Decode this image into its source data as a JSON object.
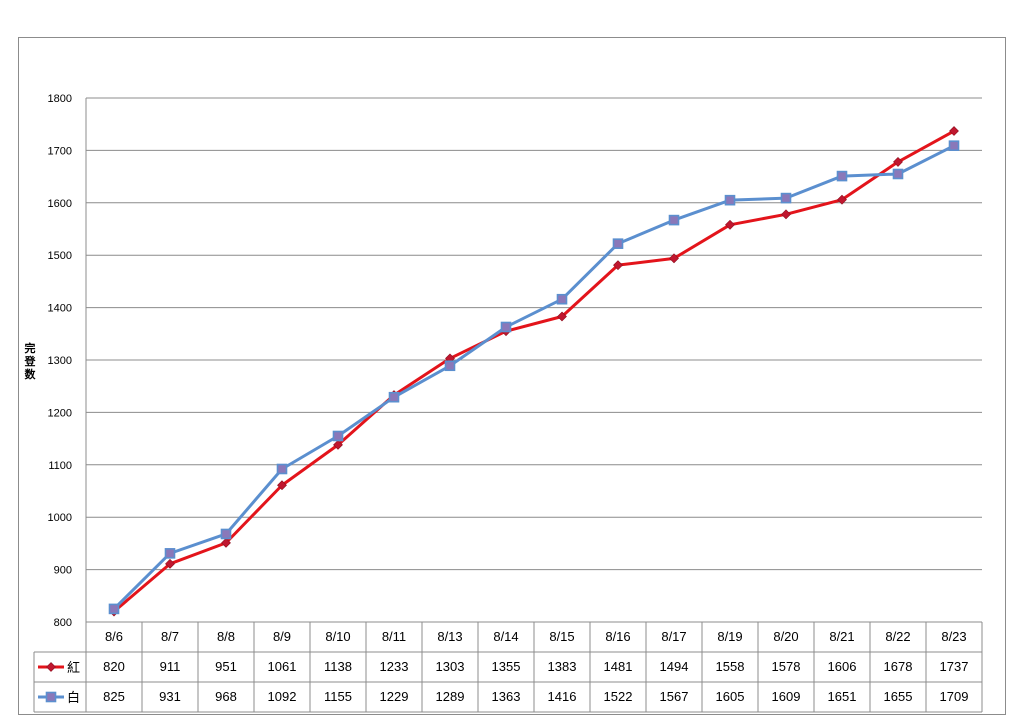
{
  "chart_data": {
    "type": "line",
    "ylabel": "完登数",
    "ylim": [
      800,
      1800
    ],
    "yticks": [
      800,
      900,
      1000,
      1100,
      1200,
      1300,
      1400,
      1500,
      1600,
      1700,
      1800
    ],
    "categories": [
      "8/6",
      "8/7",
      "8/8",
      "8/9",
      "8/10",
      "8/11",
      "8/13",
      "8/14",
      "8/15",
      "8/16",
      "8/17",
      "8/19",
      "8/20",
      "8/21",
      "8/22",
      "8/23"
    ],
    "series": [
      {
        "name": "紅",
        "color": "#e3141b",
        "marker": "diamond",
        "values": [
          820,
          911,
          951,
          1061,
          1138,
          1233,
          1303,
          1355,
          1383,
          1481,
          1494,
          1558,
          1578,
          1606,
          1678,
          1737
        ]
      },
      {
        "name": "白",
        "color": "#5b8fcf",
        "marker": "square",
        "values": [
          825,
          931,
          968,
          1092,
          1155,
          1229,
          1289,
          1363,
          1416,
          1522,
          1567,
          1605,
          1609,
          1651,
          1655,
          1709
        ]
      }
    ],
    "grid": true,
    "legend": "data-table"
  }
}
